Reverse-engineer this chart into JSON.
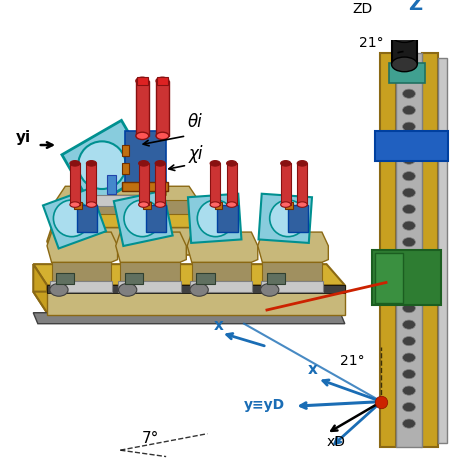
{
  "bg_color": "#ffffff",
  "labels": {
    "theta_i": "θi",
    "chi_i": "χi",
    "yi": "yi",
    "x": "x",
    "y_eq_yD": "y≡yD",
    "xD": "xD",
    "z": "Z",
    "zD": "ZD",
    "angle_21_top": "21°",
    "angle_21_bottom": "21°",
    "angle_7": "7°"
  },
  "colors": {
    "blue": "#1A6DB5",
    "red": "#CC2200",
    "green": "#2E7D32",
    "yellow_gold": "#C8A020",
    "yellow_gold2": "#D4B030",
    "dark_yellow": "#8B6914",
    "gray": "#808080",
    "light_gray": "#B0B0B0",
    "silver": "#C8C8C8",
    "dark_gray": "#404040",
    "pink_red": "#CC3333",
    "tan": "#C8B87A",
    "tan_dark": "#A09060",
    "blue_mech": "#3060A0",
    "orange": "#C07010",
    "black": "#000000",
    "white": "#ffffff",
    "cyan_mirror": "#88CCDD",
    "cyan_mirror2": "#AADDEE",
    "teal": "#009090",
    "blue_dark": "#0040A0"
  },
  "figsize": [
    4.74,
    4.74
  ],
  "dpi": 100
}
